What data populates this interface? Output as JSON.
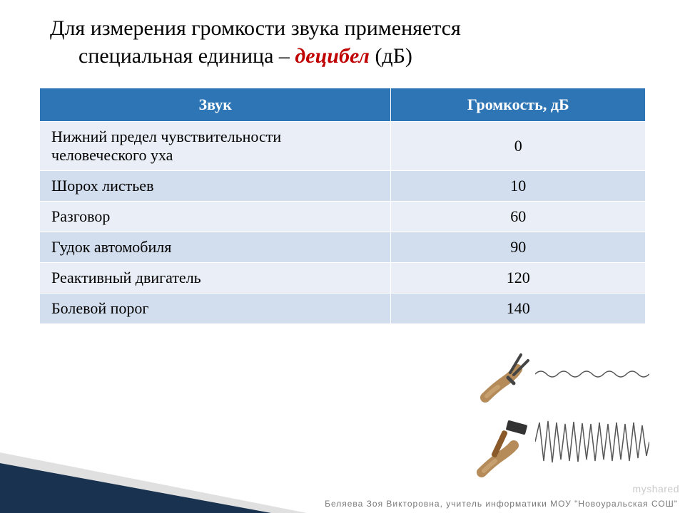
{
  "title": {
    "line1": "Для измерения громкости звука применяется",
    "line2_pre": "специальная единица – ",
    "line2_hl": "децибел",
    "line2_post": " (дБ)"
  },
  "table": {
    "headers": [
      "Звук",
      "Громкость, дБ"
    ],
    "rows": [
      {
        "label": "Нижний предел чувствительности человеческого уха",
        "value": "0"
      },
      {
        "label": "Шорох листьев",
        "value": "10"
      },
      {
        "label": "Разговор",
        "value": "60"
      },
      {
        "label": "Гудок автомобиля",
        "value": "90"
      },
      {
        "label": "Реактивный двигатель",
        "value": "120"
      },
      {
        "label": "Болевой порог",
        "value": "140"
      }
    ],
    "header_bg": "#2e75b6",
    "header_fg": "#ffffff",
    "row_odd_bg": "#eaeff7",
    "row_even_bg": "#d2deee",
    "font_size_pt": 16
  },
  "illustration": {
    "top_icon": "tuning-fork",
    "bottom_icon": "hammer",
    "wave_low_amp": 8,
    "wave_high_amp": 28,
    "wave_color": "#555555"
  },
  "corner": {
    "triangle_color": "#19324f"
  },
  "footer": "Беляева Зоя Викторовна, учитель информатики МОУ \"Новоуральская СОШ\"",
  "watermark": "myshared"
}
